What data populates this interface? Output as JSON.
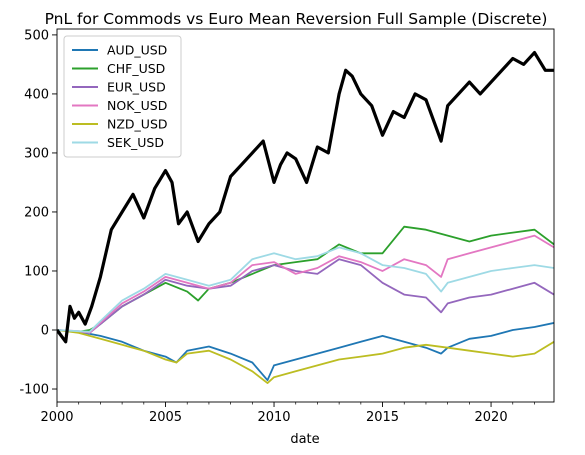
{
  "chart_data": {
    "type": "line",
    "title": "PnL for Commods vs Euro Mean Reversion Full Sample (Discrete)",
    "xlabel": "date",
    "ylabel": "",
    "xlim": [
      2000.0,
      2022.9
    ],
    "ylim": [
      -122,
      510
    ],
    "x_ticks": [
      2000,
      2005,
      2010,
      2015,
      2020
    ],
    "y_ticks": [
      -100,
      0,
      100,
      200,
      300,
      400,
      500
    ],
    "grid": false,
    "legend_position": "upper-left",
    "series": [
      {
        "name": "AUD_USD",
        "color": "#1f77b4",
        "x": [
          2000.0,
          2001.0,
          2002.0,
          2003.0,
          2004.0,
          2005.0,
          2005.5,
          2006.0,
          2007.0,
          2008.0,
          2009.0,
          2009.7,
          2010.0,
          2011.0,
          2012.0,
          2013.0,
          2014.0,
          2015.0,
          2016.0,
          2017.0,
          2017.7,
          2018.0,
          2019.0,
          2020.0,
          2021.0,
          2022.0,
          2022.9
        ],
        "values": [
          0,
          -3,
          -10,
          -20,
          -35,
          -45,
          -55,
          -35,
          -28,
          -40,
          -55,
          -85,
          -60,
          -50,
          -40,
          -30,
          -20,
          -10,
          -20,
          -30,
          -40,
          -30,
          -15,
          -10,
          0,
          5,
          12
        ]
      },
      {
        "name": "CHF_USD",
        "color": "#2ca02c",
        "x": [
          2000.0,
          2001.0,
          2001.5,
          2002.0,
          2003.0,
          2004.0,
          2005.0,
          2006.0,
          2006.5,
          2007.0,
          2008.0,
          2009.0,
          2010.0,
          2011.0,
          2012.0,
          2013.0,
          2014.0,
          2015.0,
          2016.0,
          2017.0,
          2018.0,
          2019.0,
          2020.0,
          2021.0,
          2022.0,
          2022.9
        ],
        "values": [
          0,
          -3,
          0,
          10,
          40,
          60,
          80,
          65,
          50,
          70,
          80,
          95,
          110,
          115,
          120,
          145,
          130,
          130,
          175,
          170,
          160,
          150,
          160,
          165,
          170,
          145
        ]
      },
      {
        "name": "EUR_USD",
        "color": "#9467bd",
        "x": [
          2000.0,
          2001.0,
          2001.5,
          2002.0,
          2003.0,
          2004.0,
          2005.0,
          2006.0,
          2007.0,
          2008.0,
          2009.0,
          2010.0,
          2011.0,
          2012.0,
          2013.0,
          2014.0,
          2015.0,
          2016.0,
          2017.0,
          2017.7,
          2018.0,
          2019.0,
          2020.0,
          2021.0,
          2022.0,
          2022.9
        ],
        "values": [
          0,
          -3,
          -5,
          10,
          40,
          60,
          85,
          75,
          70,
          75,
          100,
          110,
          100,
          95,
          120,
          110,
          80,
          60,
          55,
          30,
          45,
          55,
          60,
          70,
          80,
          60
        ]
      },
      {
        "name": "NOK_USD",
        "color": "#e377c2",
        "x": [
          2000.0,
          2001.0,
          2001.5,
          2002.0,
          2003.0,
          2004.0,
          2005.0,
          2006.0,
          2007.0,
          2008.0,
          2009.0,
          2010.0,
          2011.0,
          2012.0,
          2013.0,
          2014.0,
          2015.0,
          2016.0,
          2017.0,
          2017.7,
          2018.0,
          2019.0,
          2020.0,
          2021.0,
          2022.0,
          2022.9
        ],
        "values": [
          0,
          -2,
          -5,
          12,
          45,
          65,
          90,
          80,
          70,
          80,
          110,
          115,
          95,
          105,
          125,
          115,
          100,
          120,
          110,
          90,
          120,
          130,
          140,
          150,
          160,
          140
        ]
      },
      {
        "name": "NZD_USD",
        "color": "#bcbd22",
        "x": [
          2000.0,
          2001.0,
          2002.0,
          2003.0,
          2004.0,
          2005.0,
          2005.5,
          2006.0,
          2007.0,
          2008.0,
          2009.0,
          2009.7,
          2010.0,
          2011.0,
          2012.0,
          2013.0,
          2014.0,
          2015.0,
          2016.0,
          2017.0,
          2018.0,
          2019.0,
          2020.0,
          2021.0,
          2022.0,
          2022.9
        ],
        "values": [
          0,
          -5,
          -15,
          -25,
          -35,
          -50,
          -55,
          -40,
          -35,
          -50,
          -70,
          -90,
          -80,
          -70,
          -60,
          -50,
          -45,
          -40,
          -30,
          -25,
          -30,
          -35,
          -40,
          -45,
          -40,
          -20
        ]
      },
      {
        "name": "SEK_USD",
        "color": "#9edae5",
        "x": [
          2000.0,
          2001.0,
          2001.5,
          2002.0,
          2003.0,
          2004.0,
          2005.0,
          2006.0,
          2007.0,
          2008.0,
          2009.0,
          2010.0,
          2011.0,
          2012.0,
          2013.0,
          2014.0,
          2015.0,
          2016.0,
          2017.0,
          2017.7,
          2018.0,
          2019.0,
          2020.0,
          2021.0,
          2022.0,
          2022.9
        ],
        "values": [
          0,
          -2,
          -3,
          15,
          50,
          70,
          95,
          85,
          75,
          85,
          120,
          130,
          120,
          125,
          140,
          130,
          110,
          105,
          95,
          65,
          80,
          90,
          100,
          105,
          110,
          105
        ]
      },
      {
        "name": "",
        "color": "#000000",
        "x": [
          2000.0,
          2000.4,
          2000.6,
          2000.8,
          2001.0,
          2001.3,
          2001.6,
          2002.0,
          2002.5,
          2003.0,
          2003.5,
          2004.0,
          2004.5,
          2005.0,
          2005.3,
          2005.6,
          2006.0,
          2006.5,
          2007.0,
          2007.5,
          2008.0,
          2008.5,
          2009.0,
          2009.5,
          2010.0,
          2010.3,
          2010.6,
          2011.0,
          2011.5,
          2012.0,
          2012.5,
          2013.0,
          2013.3,
          2013.6,
          2014.0,
          2014.5,
          2015.0,
          2015.5,
          2016.0,
          2016.5,
          2017.0,
          2017.5,
          2017.7,
          2018.0,
          2018.5,
          2019.0,
          2019.5,
          2020.0,
          2020.5,
          2021.0,
          2021.5,
          2022.0,
          2022.5,
          2022.9
        ],
        "values": [
          0,
          -20,
          40,
          20,
          30,
          10,
          40,
          90,
          170,
          200,
          230,
          190,
          240,
          270,
          250,
          180,
          200,
          150,
          180,
          200,
          260,
          280,
          300,
          320,
          250,
          280,
          300,
          290,
          250,
          310,
          300,
          400,
          440,
          430,
          400,
          380,
          330,
          370,
          360,
          400,
          390,
          340,
          320,
          380,
          400,
          420,
          400,
          420,
          440,
          460,
          450,
          470,
          440,
          440
        ]
      }
    ]
  }
}
